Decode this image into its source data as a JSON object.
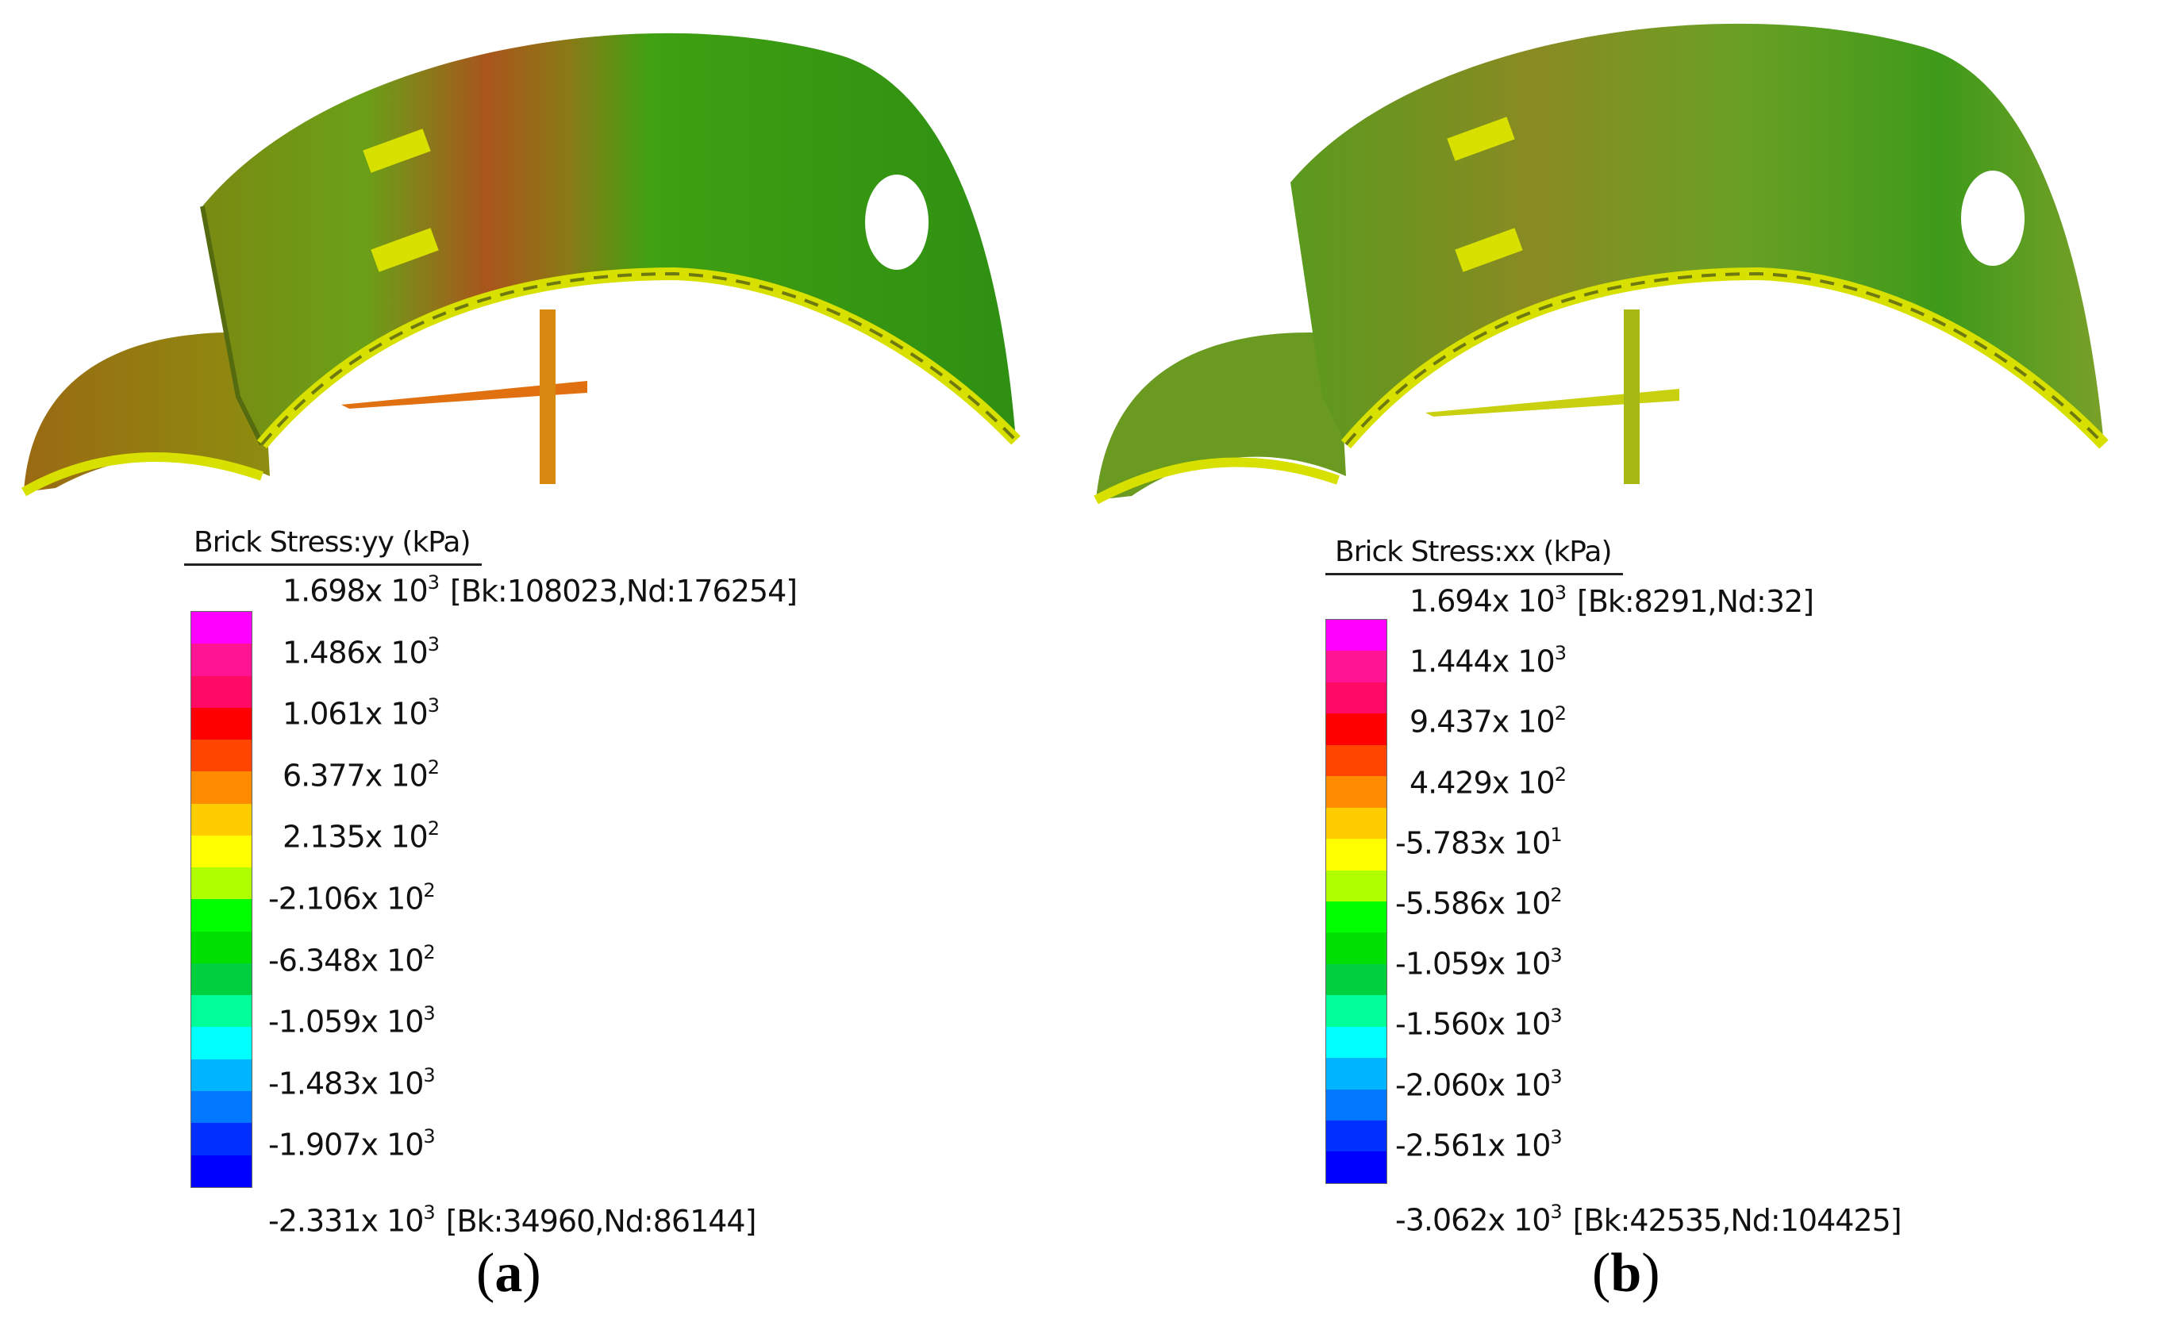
{
  "panels": [
    {
      "id": "a",
      "legend_title": "Brick Stress:yy  (kPa)",
      "max_note": "[Bk:108023,Nd:176254]",
      "min_note": "[Bk:34960,Nd:86144]",
      "ticks": [
        {
          "mant": "1.698",
          "exp": "3"
        },
        {
          "mant": "1.486",
          "exp": "3"
        },
        {
          "mant": "1.061",
          "exp": "3"
        },
        {
          "mant": "6.377",
          "exp": "2"
        },
        {
          "mant": "2.135",
          "exp": "2"
        },
        {
          "mant": "-2.106",
          "exp": "2"
        },
        {
          "mant": "-6.348",
          "exp": "2"
        },
        {
          "mant": "-1.059",
          "exp": "3"
        },
        {
          "mant": "-1.483",
          "exp": "3"
        },
        {
          "mant": "-1.907",
          "exp": "3"
        },
        {
          "mant": "-2.331",
          "exp": "3"
        }
      ],
      "caption": "a"
    },
    {
      "id": "b",
      "legend_title": "Brick Stress:xx  (kPa)",
      "max_note": "[Bk:8291,Nd:32]",
      "min_note": "[Bk:42535,Nd:104425]",
      "ticks": [
        {
          "mant": "1.694",
          "exp": "3"
        },
        {
          "mant": "1.444",
          "exp": "3"
        },
        {
          "mant": "9.437",
          "exp": "2"
        },
        {
          "mant": "4.429",
          "exp": "2"
        },
        {
          "mant": "-5.783",
          "exp": "1"
        },
        {
          "mant": "-5.586",
          "exp": "2"
        },
        {
          "mant": "-1.059",
          "exp": "3"
        },
        {
          "mant": "-1.560",
          "exp": "3"
        },
        {
          "mant": "-2.060",
          "exp": "3"
        },
        {
          "mant": "-2.561",
          "exp": "3"
        },
        {
          "mant": "-3.062",
          "exp": "3"
        }
      ],
      "caption": "b"
    }
  ],
  "x_symbol": "x 10",
  "colormap": [
    "#ff00ff",
    "#ff1493",
    "#ff0a64",
    "#ff0000",
    "#ff4500",
    "#ff8c00",
    "#ffcc00",
    "#ffff00",
    "#b0ff00",
    "#00ff00",
    "#00e000",
    "#00d040",
    "#00ff99",
    "#00ffff",
    "#00b4ff",
    "#0078ff",
    "#0030ff",
    "#0000ff"
  ],
  "model_colors": {
    "a_base": "#4f9a10",
    "a_hot": "#b5481a",
    "b_base": "#7aa526",
    "b_hot": "#a88a2a"
  }
}
